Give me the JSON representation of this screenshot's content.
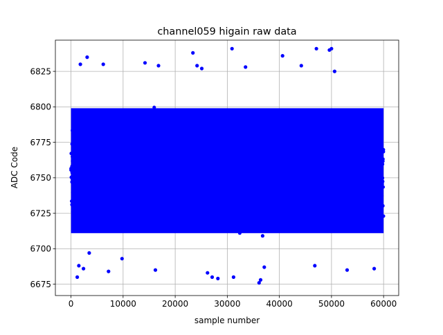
{
  "chart_data": {
    "type": "scatter",
    "title": "channel059 higain raw data",
    "xlabel": "sample number",
    "ylabel": "ADC Code",
    "xlim": [
      -3000,
      62900
    ],
    "ylim": [
      6667,
      6847
    ],
    "xticks": [
      0,
      10000,
      20000,
      30000,
      40000,
      50000,
      60000
    ],
    "xtick_labels": [
      "0",
      "10000",
      "20000",
      "30000",
      "40000",
      "50000",
      "60000"
    ],
    "yticks": [
      6675,
      6700,
      6725,
      6750,
      6775,
      6800,
      6825
    ],
    "ytick_labels": [
      "6675",
      "6700",
      "6725",
      "6750",
      "6775",
      "6800",
      "6825"
    ],
    "grid": true,
    "marker_color": "#0000ff",
    "series": [
      {
        "x_range": [
          0,
          59999
        ],
        "dense_band": [
          6710,
          6800
        ],
        "approx_mean": 6757,
        "outliers": [
          {
            "x": 1200,
            "y": 6680
          },
          {
            "x": 1500,
            "y": 6688
          },
          {
            "x": 1800,
            "y": 6830
          },
          {
            "x": 2400,
            "y": 6686
          },
          {
            "x": 3100,
            "y": 6835
          },
          {
            "x": 3500,
            "y": 6697
          },
          {
            "x": 6200,
            "y": 6830
          },
          {
            "x": 7200,
            "y": 6684
          },
          {
            "x": 9800,
            "y": 6693
          },
          {
            "x": 14200,
            "y": 6831
          },
          {
            "x": 16800,
            "y": 6829
          },
          {
            "x": 16200,
            "y": 6685
          },
          {
            "x": 23400,
            "y": 6838
          },
          {
            "x": 24200,
            "y": 6829
          },
          {
            "x": 25100,
            "y": 6827
          },
          {
            "x": 26200,
            "y": 6683
          },
          {
            "x": 27100,
            "y": 6680
          },
          {
            "x": 28200,
            "y": 6679
          },
          {
            "x": 30900,
            "y": 6841
          },
          {
            "x": 31200,
            "y": 6680
          },
          {
            "x": 33500,
            "y": 6828
          },
          {
            "x": 36100,
            "y": 6676
          },
          {
            "x": 36400,
            "y": 6678
          },
          {
            "x": 37100,
            "y": 6687
          },
          {
            "x": 40600,
            "y": 6836
          },
          {
            "x": 44200,
            "y": 6829
          },
          {
            "x": 46800,
            "y": 6688
          },
          {
            "x": 47100,
            "y": 6841
          },
          {
            "x": 49600,
            "y": 6840
          },
          {
            "x": 50000,
            "y": 6841
          },
          {
            "x": 50600,
            "y": 6825
          },
          {
            "x": 53000,
            "y": 6685
          },
          {
            "x": 58200,
            "y": 6686
          }
        ]
      }
    ]
  }
}
